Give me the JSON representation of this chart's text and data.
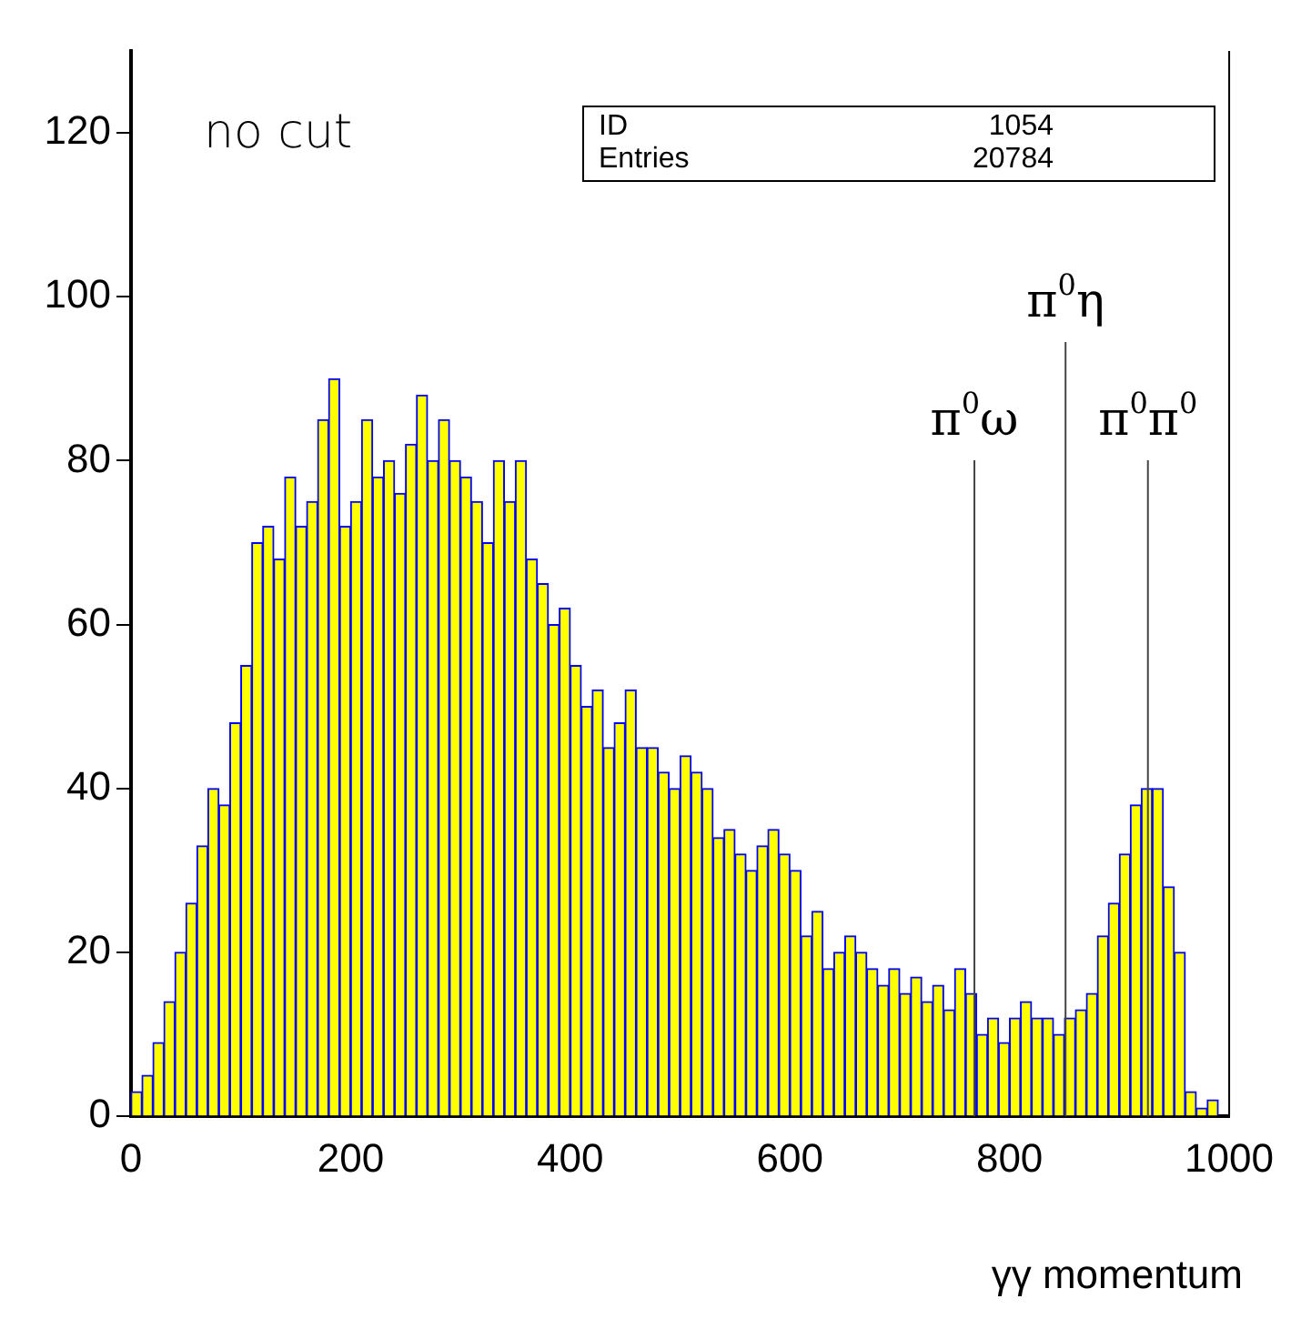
{
  "chart_data": {
    "type": "histogram",
    "xlabel": "γγ  momentum",
    "color": "#ffff00",
    "bins": [
      0,
      10,
      20,
      30,
      40,
      50,
      60,
      70,
      80,
      90,
      100,
      110,
      120,
      130,
      140,
      150,
      160,
      170,
      180,
      190,
      200,
      210,
      220,
      230,
      240,
      250,
      260,
      270,
      280,
      290,
      300,
      310,
      320,
      330,
      340,
      350,
      360,
      370,
      380,
      390,
      400,
      410,
      420,
      430,
      440,
      450,
      460,
      470,
      480,
      490,
      500,
      510,
      520,
      530,
      540,
      550,
      560,
      570,
      580,
      590,
      600,
      610,
      620,
      630,
      640,
      650,
      660,
      670,
      680,
      690,
      700,
      710,
      720,
      730,
      740,
      750,
      760,
      770,
      780,
      790,
      800,
      810,
      820,
      830,
      840,
      850,
      860,
      870,
      880,
      890,
      900,
      910,
      920,
      930,
      940,
      950,
      960,
      970,
      980,
      990,
      1000
    ],
    "values": [
      3,
      5,
      9,
      14,
      20,
      26,
      33,
      40,
      38,
      48,
      55,
      70,
      72,
      68,
      78,
      72,
      75,
      85,
      90,
      72,
      75,
      85,
      78,
      80,
      76,
      82,
      88,
      80,
      85,
      80,
      78,
      75,
      70,
      80,
      75,
      80,
      68,
      65,
      60,
      62,
      55,
      50,
      52,
      45,
      48,
      52,
      45,
      45,
      42,
      40,
      44,
      42,
      40,
      34,
      35,
      32,
      30,
      33,
      35,
      32,
      30,
      22,
      25,
      18,
      20,
      22,
      20,
      18,
      16,
      18,
      15,
      17,
      14,
      16,
      13,
      18,
      15,
      10,
      12,
      9,
      12,
      14,
      12,
      12,
      10,
      12,
      13,
      15,
      22,
      26,
      32,
      38,
      40,
      40,
      28,
      20,
      3,
      1,
      2,
      0
    ],
    "xlim": [
      0,
      1000
    ],
    "ylim": [
      0,
      130
    ],
    "xticks": [
      0,
      200,
      400,
      600,
      800,
      {
        "value": 1000,
        "label": "1000"
      }
    ],
    "yticks": [
      0,
      20,
      40,
      60,
      80,
      100,
      120
    ],
    "ref_lines": [
      {
        "axis": "x",
        "value": 768,
        "label": "π$^{0}$ω"
      },
      {
        "axis": "x",
        "value": 851,
        "label": "π$^{0}$η"
      },
      {
        "axis": "x",
        "value": 926,
        "label": "π$^{0}$π$^{0}$"
      }
    ],
    "annotations": [
      "no cut",
      "ID 1054",
      "Entries 20784"
    ]
  }
}
